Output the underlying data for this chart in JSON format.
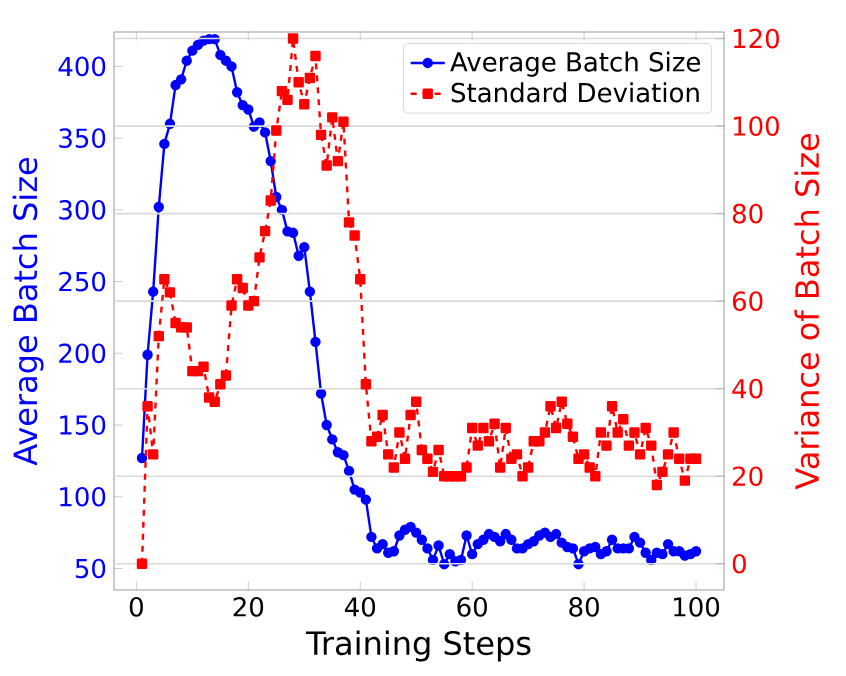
{
  "chart_data": {
    "type": "line",
    "xlabel": "Training Steps",
    "ylabel": "Average Batch Size",
    "y2label": "Variance of Batch Size",
    "x": [
      1,
      2,
      3,
      4,
      5,
      6,
      7,
      8,
      9,
      10,
      11,
      12,
      13,
      14,
      15,
      16,
      17,
      18,
      19,
      20,
      21,
      22,
      23,
      24,
      25,
      26,
      27,
      28,
      29,
      30,
      31,
      32,
      33,
      34,
      35,
      36,
      37,
      38,
      39,
      40,
      41,
      42,
      43,
      44,
      45,
      46,
      47,
      48,
      49,
      50,
      51,
      52,
      53,
      54,
      55,
      56,
      57,
      58,
      59,
      60,
      61,
      62,
      63,
      64,
      65,
      66,
      67,
      68,
      69,
      70,
      71,
      72,
      73,
      74,
      75,
      76,
      77,
      78,
      79,
      80,
      81,
      82,
      83,
      84,
      85,
      86,
      87,
      88,
      89,
      90,
      91,
      92,
      93,
      94,
      95,
      96,
      97,
      98,
      99,
      100
    ],
    "series": [
      {
        "name": "Average Batch Size",
        "color": "#0000ff",
        "marker": "circle",
        "line_style": "solid",
        "values": [
          127,
          199,
          243,
          302,
          346,
          360,
          387,
          391,
          404,
          411,
          415,
          418,
          419,
          419,
          408,
          404,
          400,
          382,
          373,
          370,
          358,
          361,
          354,
          334,
          309,
          300,
          285,
          284,
          268,
          274,
          243,
          208,
          172,
          150,
          140,
          131,
          129,
          118,
          105,
          103,
          98,
          72,
          64,
          67,
          61,
          62,
          73,
          77,
          79,
          75,
          70,
          64,
          56,
          66,
          53,
          60,
          55,
          56,
          73,
          60,
          67,
          70,
          74,
          72,
          69,
          74,
          70,
          64,
          64,
          67,
          69,
          73,
          75,
          72,
          74,
          68,
          65,
          64,
          53,
          62,
          64,
          65,
          60,
          62,
          70,
          64,
          64,
          64,
          72,
          68,
          61,
          56,
          61,
          60,
          67,
          62,
          62,
          59,
          60,
          62
        ]
      },
      {
        "name": "Standard Deviation",
        "color": "#ff0000",
        "marker": "square",
        "line_style": "dashed",
        "axis": "y2",
        "values": [
          0,
          36,
          25,
          52,
          65,
          62,
          55,
          54,
          54,
          44,
          44,
          45,
          38,
          37,
          41,
          43,
          59,
          65,
          63,
          59,
          60,
          70,
          76,
          83,
          99,
          108,
          106,
          120,
          110,
          105,
          111,
          116,
          98,
          91,
          102,
          92,
          101,
          78,
          75,
          65,
          41,
          28,
          29,
          34,
          25,
          22,
          30,
          24,
          34,
          37,
          26,
          24,
          21,
          26,
          20,
          20,
          20,
          20,
          22,
          31,
          27,
          31,
          28,
          32,
          22,
          31,
          24,
          25,
          20,
          22,
          28,
          28,
          30,
          36,
          31,
          37,
          32,
          29,
          24,
          25,
          22,
          20,
          30,
          27,
          36,
          30,
          33,
          27,
          30,
          25,
          31,
          27,
          18,
          21,
          25,
          30,
          24,
          19,
          24,
          24
        ]
      }
    ],
    "xlim": [
      -4,
      105
    ],
    "xticks": [
      0,
      20,
      40,
      60,
      80,
      100
    ],
    "ylim": [
      35,
      424
    ],
    "yticks": [
      50,
      100,
      150,
      200,
      250,
      300,
      350,
      400
    ],
    "y2lim": [
      -6,
      121.5
    ],
    "y2ticks": [
      0,
      20,
      40,
      60,
      80,
      100,
      120
    ],
    "grid": "y2",
    "legend": "top right"
  }
}
